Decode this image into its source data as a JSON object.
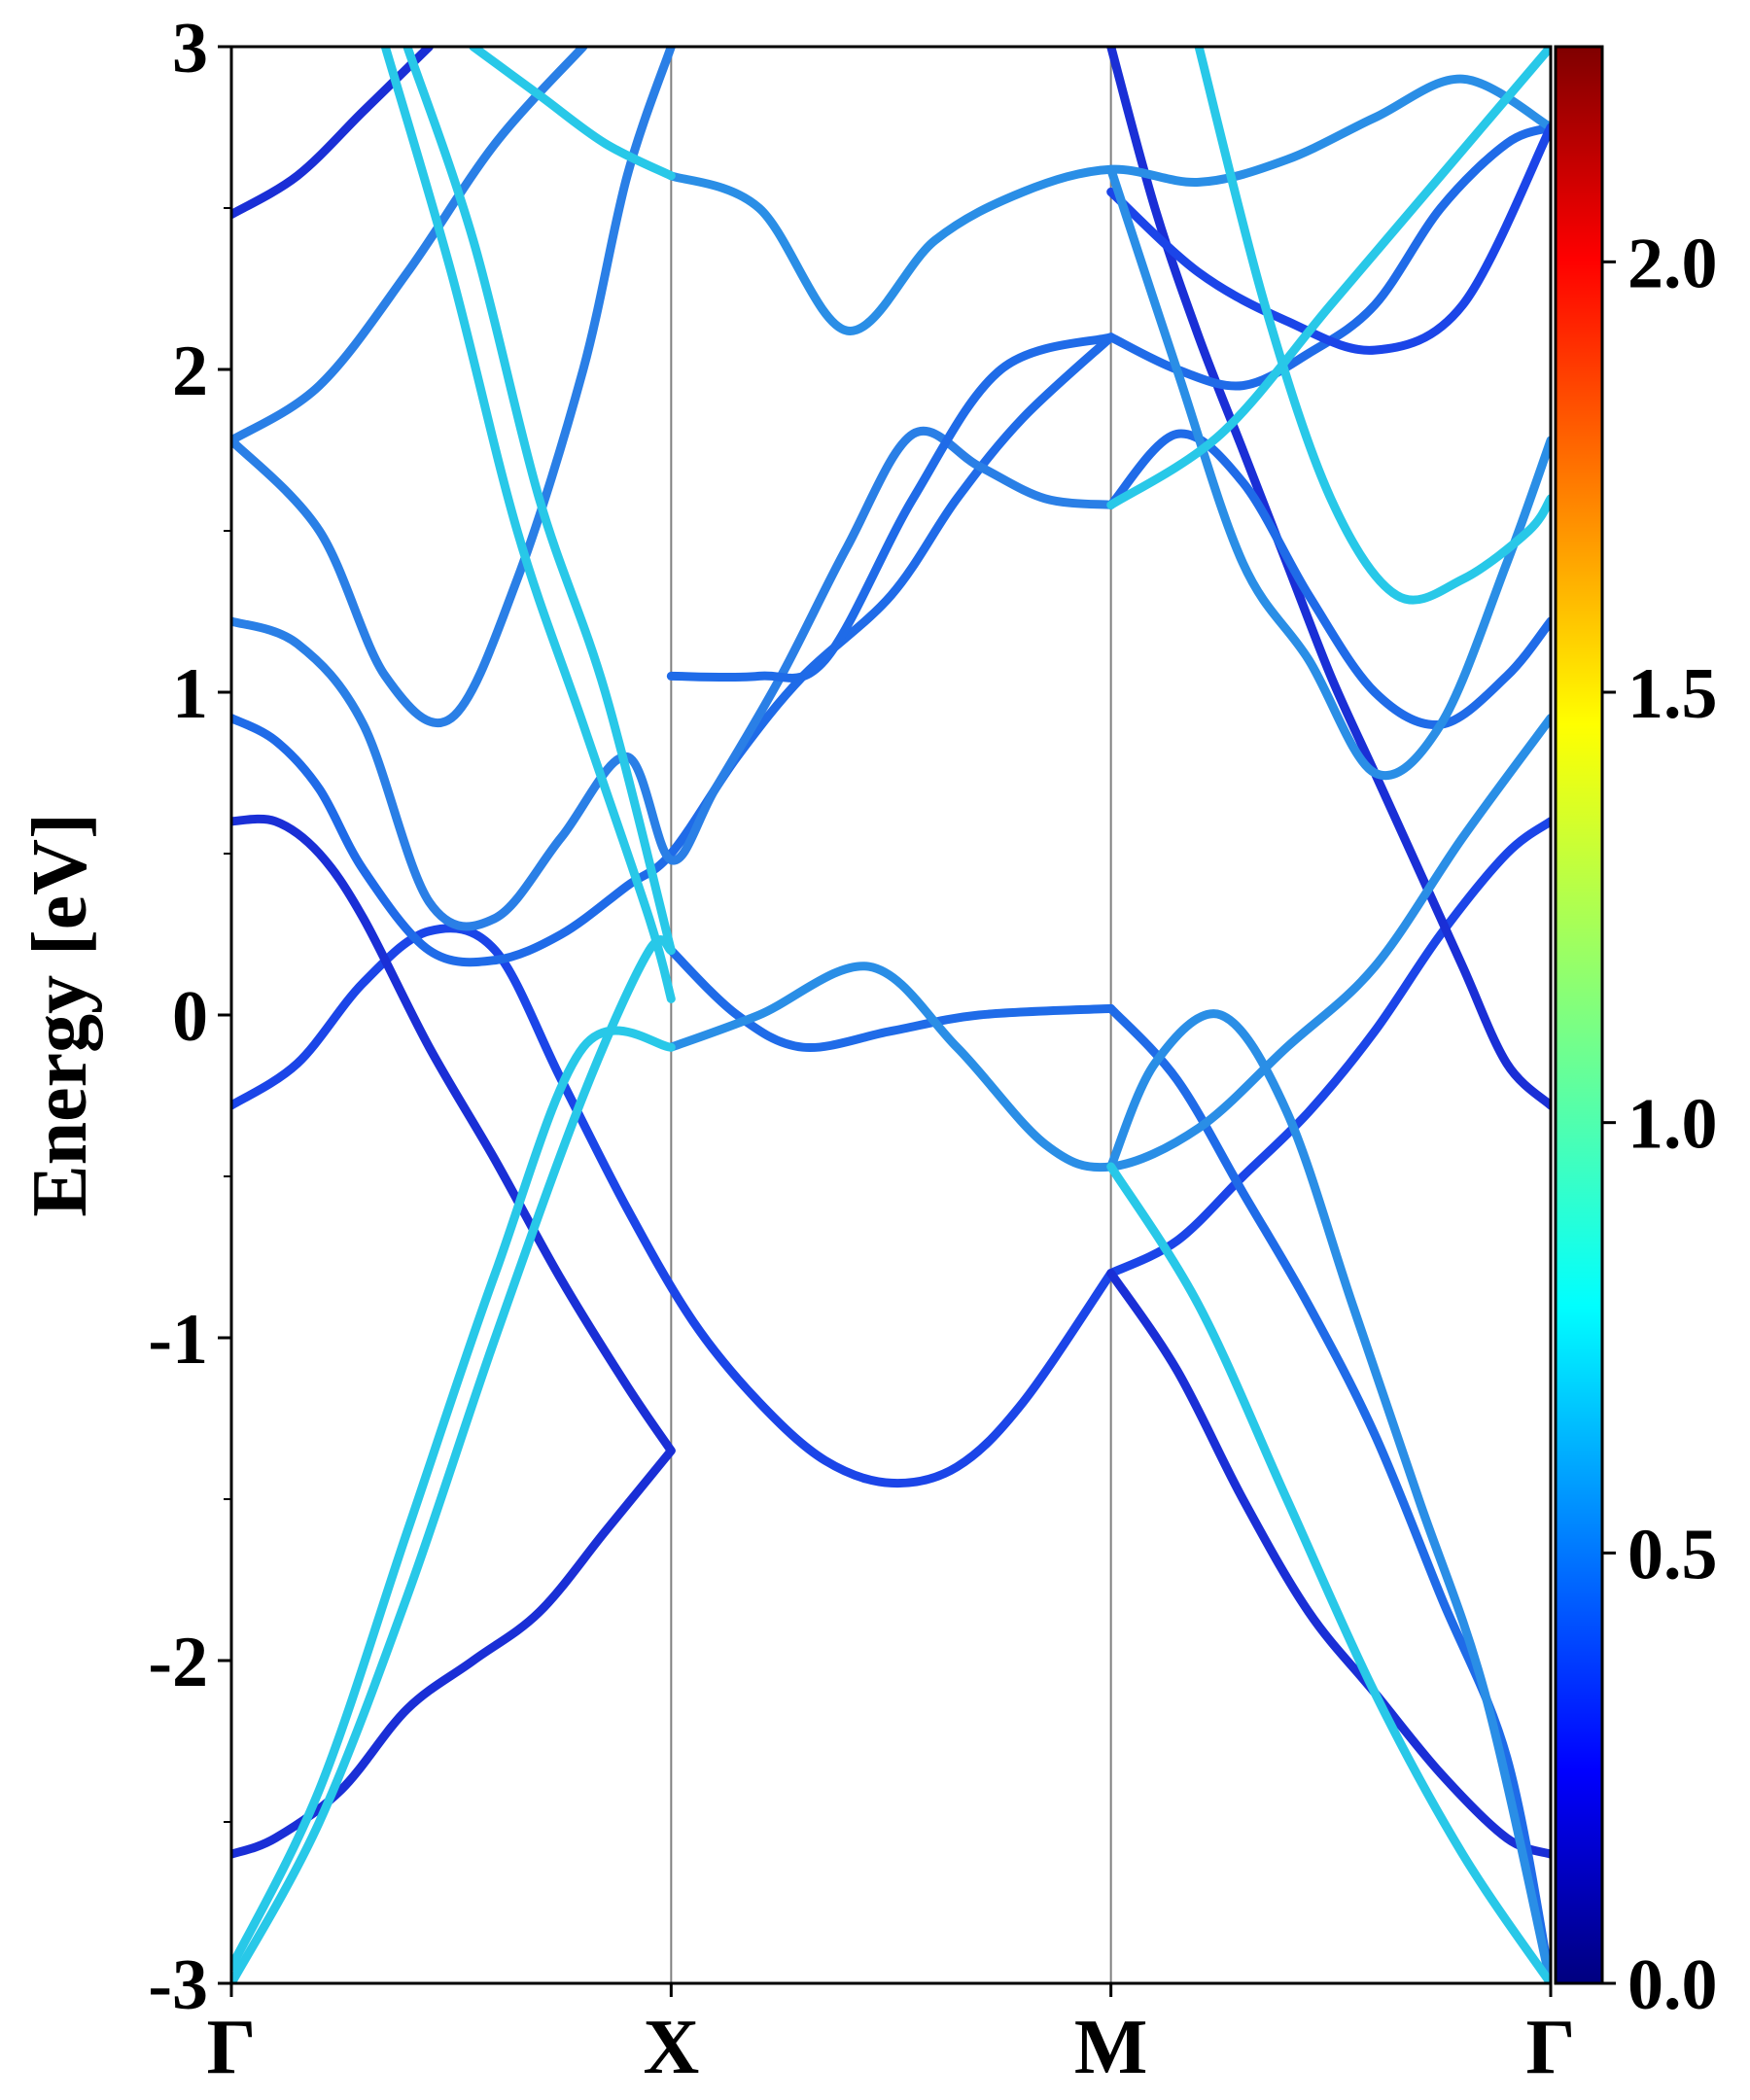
{
  "chart_data": {
    "type": "line",
    "ylabel": "Energy [eV]",
    "ylim": [
      -3,
      3
    ],
    "y_ticks": [
      {
        "value": 3,
        "label": "3"
      },
      {
        "value": 2,
        "label": "2"
      },
      {
        "value": 1,
        "label": "1"
      },
      {
        "value": 0,
        "label": "0"
      },
      {
        "value": -1,
        "label": "-1"
      },
      {
        "value": -2,
        "label": "-2"
      },
      {
        "value": -3,
        "label": "-3"
      }
    ],
    "xlim": [
      0,
      3
    ],
    "k_points": [
      {
        "position": 0,
        "label": "Γ"
      },
      {
        "position": 1,
        "label": "X"
      },
      {
        "position": 2,
        "label": "M"
      },
      {
        "position": 3,
        "label": "Γ"
      }
    ],
    "colorbar": {
      "colormap": "jet",
      "range": [
        0,
        2.25
      ],
      "ticks": [
        {
          "value": 0.0,
          "label": "0.0"
        },
        {
          "value": 0.5,
          "label": "0.5"
        },
        {
          "value": 1.0,
          "label": "1.0"
        },
        {
          "value": 1.5,
          "label": "1.5"
        },
        {
          "value": 2.0,
          "label": "2.0"
        }
      ]
    },
    "bands": [
      {
        "color": "#1b45e8",
        "points": [
          [
            0,
            -0.28
          ],
          [
            0.15,
            -0.15
          ],
          [
            0.3,
            0.1
          ],
          [
            0.45,
            0.26
          ],
          [
            0.6,
            0.2
          ],
          [
            0.75,
            -0.2
          ],
          [
            0.9,
            -0.6
          ],
          [
            1.05,
            -0.95
          ],
          [
            1.2,
            -1.2
          ],
          [
            1.35,
            -1.38
          ],
          [
            1.5,
            -1.45
          ],
          [
            1.65,
            -1.4
          ],
          [
            1.8,
            -1.2
          ],
          [
            2.0,
            -0.8
          ]
        ]
      },
      {
        "color": "#1b45e8",
        "points": [
          [
            2.0,
            -0.8
          ],
          [
            2.15,
            -0.7
          ],
          [
            2.3,
            -0.5
          ],
          [
            2.45,
            -0.3
          ],
          [
            2.6,
            -0.05
          ],
          [
            2.75,
            0.25
          ],
          [
            2.9,
            0.5
          ],
          [
            3.0,
            0.6
          ]
        ]
      },
      {
        "color": "#1a2fd6",
        "points": [
          [
            0,
            0.6
          ],
          [
            0.1,
            0.6
          ],
          [
            0.2,
            0.5
          ],
          [
            0.3,
            0.3
          ],
          [
            0.45,
            -0.1
          ],
          [
            0.6,
            -0.45
          ],
          [
            0.75,
            -0.82
          ],
          [
            0.9,
            -1.15
          ],
          [
            1.0,
            -1.35
          ]
        ]
      },
      {
        "color": "#1a2fd6",
        "points": [
          [
            1.0,
            -1.35
          ],
          [
            0.85,
            -1.6
          ],
          [
            0.7,
            -1.85
          ],
          [
            0.55,
            -2.0
          ],
          [
            0.4,
            -2.15
          ],
          [
            0.25,
            -2.4
          ],
          [
            0.1,
            -2.55
          ],
          [
            0,
            -2.6
          ]
        ]
      },
      {
        "color": "#1a2fd6",
        "points": [
          [
            2.0,
            -0.8
          ],
          [
            2.15,
            -1.1
          ],
          [
            2.3,
            -1.5
          ],
          [
            2.45,
            -1.85
          ],
          [
            2.6,
            -2.1
          ],
          [
            2.75,
            -2.35
          ],
          [
            2.9,
            -2.55
          ],
          [
            3.0,
            -2.6
          ]
        ]
      },
      {
        "color": "#1a2fd6",
        "points": [
          [
            3.0,
            -0.28
          ],
          [
            2.9,
            -0.15
          ],
          [
            2.8,
            0.15
          ],
          [
            2.7,
            0.45
          ],
          [
            2.6,
            0.75
          ],
          [
            2.5,
            1.05
          ],
          [
            2.4,
            1.4
          ],
          [
            2.3,
            1.75
          ],
          [
            2.2,
            2.1
          ],
          [
            2.1,
            2.5
          ],
          [
            2.0,
            3.0
          ]
        ]
      },
      {
        "color": "#1f6be8",
        "points": [
          [
            0,
            0.92
          ],
          [
            0.1,
            0.85
          ],
          [
            0.2,
            0.7
          ],
          [
            0.3,
            0.45
          ],
          [
            0.45,
            0.2
          ],
          [
            0.6,
            0.17
          ],
          [
            0.75,
            0.25
          ],
          [
            0.9,
            0.4
          ],
          [
            1.0,
            0.5
          ],
          [
            1.15,
            0.8
          ],
          [
            1.3,
            1.05
          ],
          [
            1.5,
            1.3
          ],
          [
            1.65,
            1.6
          ],
          [
            1.8,
            1.85
          ],
          [
            2.0,
            2.1
          ]
        ]
      },
      {
        "color": "#1f6be8",
        "points": [
          [
            2.0,
            2.1
          ],
          [
            2.15,
            2.0
          ],
          [
            2.3,
            1.95
          ],
          [
            2.45,
            2.05
          ],
          [
            2.6,
            2.2
          ],
          [
            2.75,
            2.5
          ],
          [
            2.9,
            2.7
          ],
          [
            3.0,
            2.75
          ]
        ]
      },
      {
        "color": "#2a7fe6",
        "points": [
          [
            0,
            1.22
          ],
          [
            0.15,
            1.15
          ],
          [
            0.3,
            0.9
          ],
          [
            0.45,
            0.35
          ],
          [
            0.6,
            0.3
          ],
          [
            0.75,
            0.55
          ],
          [
            0.9,
            0.8
          ],
          [
            1.0,
            0.48
          ],
          [
            1.1,
            0.7
          ],
          [
            1.25,
            1.05
          ],
          [
            1.4,
            1.45
          ],
          [
            1.55,
            1.8
          ],
          [
            1.7,
            1.7
          ],
          [
            1.85,
            1.6
          ],
          [
            2.0,
            1.58
          ]
        ]
      },
      {
        "color": "#2a7fe6",
        "points": [
          [
            0,
            1.78
          ],
          [
            0.2,
            1.95
          ],
          [
            0.4,
            2.3
          ],
          [
            0.6,
            2.7
          ],
          [
            0.8,
            3.0
          ]
        ]
      },
      {
        "color": "#2a7fe6",
        "points": [
          [
            0,
            1.78
          ],
          [
            0.2,
            1.5
          ],
          [
            0.35,
            1.05
          ],
          [
            0.5,
            0.92
          ],
          [
            0.65,
            1.35
          ],
          [
            0.8,
            2.0
          ],
          [
            0.9,
            2.6
          ],
          [
            1.0,
            3.0
          ]
        ]
      },
      {
        "color": "#1a2fd6",
        "points": [
          [
            0,
            2.48
          ],
          [
            0.15,
            2.6
          ],
          [
            0.3,
            2.8
          ],
          [
            0.45,
            3.0
          ]
        ]
      },
      {
        "color": "#1f6be8",
        "points": [
          [
            1.0,
            1.05
          ],
          [
            1.2,
            1.05
          ],
          [
            1.35,
            1.1
          ],
          [
            1.55,
            1.6
          ],
          [
            1.75,
            2.0
          ],
          [
            2.0,
            2.1
          ]
        ]
      },
      {
        "color": "#2a8ee6",
        "points": [
          [
            1.0,
            2.6
          ],
          [
            1.2,
            2.5
          ],
          [
            1.4,
            2.12
          ],
          [
            1.6,
            2.4
          ],
          [
            1.8,
            2.55
          ],
          [
            2.0,
            2.62
          ],
          [
            2.2,
            2.58
          ],
          [
            2.4,
            2.65
          ],
          [
            2.6,
            2.78
          ],
          [
            2.8,
            2.9
          ],
          [
            3.0,
            2.75
          ]
        ]
      },
      {
        "color": "#1b45e8",
        "points": [
          [
            2.0,
            2.55
          ],
          [
            2.2,
            2.3
          ],
          [
            2.4,
            2.15
          ],
          [
            2.6,
            2.06
          ],
          [
            2.8,
            2.2
          ],
          [
            3.0,
            2.75
          ]
        ]
      },
      {
        "color": "#1f6be8",
        "points": [
          [
            2.0,
            0.02
          ],
          [
            2.15,
            -0.2
          ],
          [
            2.3,
            -0.55
          ],
          [
            2.45,
            -0.9
          ],
          [
            2.6,
            -1.3
          ],
          [
            2.75,
            -1.8
          ],
          [
            2.9,
            -2.3
          ],
          [
            3.0,
            -3.0
          ]
        ]
      },
      {
        "color": "#1f6be8",
        "points": [
          [
            1.0,
            0.2
          ],
          [
            1.15,
            0.0
          ],
          [
            1.3,
            -0.1
          ],
          [
            1.5,
            -0.05
          ],
          [
            1.7,
            0.0
          ],
          [
            2.0,
            0.02
          ]
        ]
      },
      {
        "color": "#2a8ee6",
        "points": [
          [
            1.0,
            -0.1
          ],
          [
            1.2,
            0.0
          ],
          [
            1.45,
            0.15
          ],
          [
            1.65,
            -0.1
          ],
          [
            1.85,
            -0.4
          ],
          [
            2.0,
            -0.47
          ],
          [
            2.2,
            -0.35
          ],
          [
            2.4,
            -0.1
          ],
          [
            2.6,
            0.15
          ],
          [
            2.8,
            0.55
          ],
          [
            3.0,
            0.92
          ]
        ]
      },
      {
        "color": "#2a8ee6",
        "points": [
          [
            2.0,
            -0.47
          ],
          [
            2.1,
            -0.15
          ],
          [
            2.25,
            0.0
          ],
          [
            2.4,
            -0.3
          ],
          [
            2.55,
            -0.9
          ],
          [
            2.7,
            -1.5
          ],
          [
            2.85,
            -2.1
          ],
          [
            3.0,
            -3.0
          ]
        ]
      },
      {
        "color": "#1f6be8",
        "points": [
          [
            2.0,
            1.58
          ],
          [
            2.15,
            1.8
          ],
          [
            2.3,
            1.65
          ],
          [
            2.45,
            1.3
          ],
          [
            2.6,
            1.0
          ],
          [
            2.75,
            0.9
          ],
          [
            2.9,
            1.05
          ],
          [
            3.0,
            1.22
          ]
        ]
      },
      {
        "color": "#2a8ee6",
        "points": [
          [
            2.0,
            2.62
          ],
          [
            2.15,
            2.0
          ],
          [
            2.3,
            1.4
          ],
          [
            2.45,
            1.1
          ],
          [
            2.6,
            0.75
          ],
          [
            2.75,
            0.9
          ],
          [
            2.9,
            1.4
          ],
          [
            3.0,
            1.78
          ]
        ]
      },
      {
        "color": "#28c8e8",
        "points": [
          [
            0,
            -3.0
          ],
          [
            0.2,
            -2.5
          ],
          [
            0.4,
            -1.8
          ],
          [
            0.6,
            -1.0
          ],
          [
            0.8,
            -0.25
          ],
          [
            0.95,
            0.2
          ],
          [
            1.0,
            0.2
          ]
        ]
      },
      {
        "color": "#28c8e8",
        "points": [
          [
            0,
            -2.95
          ],
          [
            0.2,
            -2.4
          ],
          [
            0.4,
            -1.6
          ],
          [
            0.6,
            -0.8
          ],
          [
            0.8,
            -0.1
          ],
          [
            1.0,
            -0.1
          ]
        ]
      },
      {
        "color": "#28c8e8",
        "points": [
          [
            0.35,
            3.0
          ],
          [
            0.5,
            2.3
          ],
          [
            0.65,
            1.5
          ],
          [
            0.8,
            0.9
          ],
          [
            0.95,
            0.3
          ],
          [
            1.0,
            0.05
          ]
        ]
      },
      {
        "color": "#28c8e8",
        "points": [
          [
            0.4,
            3.0
          ],
          [
            0.55,
            2.4
          ],
          [
            0.7,
            1.6
          ],
          [
            0.85,
            1.0
          ],
          [
            1.0,
            0.2
          ]
        ]
      },
      {
        "color": "#28c8e8",
        "points": [
          [
            2.2,
            3.0
          ],
          [
            2.35,
            2.2
          ],
          [
            2.5,
            1.6
          ],
          [
            2.65,
            1.3
          ],
          [
            2.8,
            1.35
          ],
          [
            2.95,
            1.5
          ],
          [
            3.0,
            1.6
          ]
        ]
      },
      {
        "color": "#28c8e8",
        "points": [
          [
            2.0,
            1.58
          ],
          [
            2.25,
            1.8
          ],
          [
            2.5,
            2.2
          ],
          [
            2.75,
            2.6
          ],
          [
            3.0,
            3.0
          ]
        ]
      },
      {
        "color": "#28c8e8",
        "points": [
          [
            2.0,
            -0.47
          ],
          [
            2.2,
            -0.9
          ],
          [
            2.4,
            -1.5
          ],
          [
            2.6,
            -2.1
          ],
          [
            2.8,
            -2.6
          ],
          [
            3.0,
            -3.0
          ]
        ]
      },
      {
        "color": "#28c8e8",
        "points": [
          [
            1.0,
            2.6
          ],
          [
            0.85,
            2.7
          ],
          [
            0.7,
            2.85
          ],
          [
            0.55,
            3.0
          ]
        ]
      }
    ]
  }
}
